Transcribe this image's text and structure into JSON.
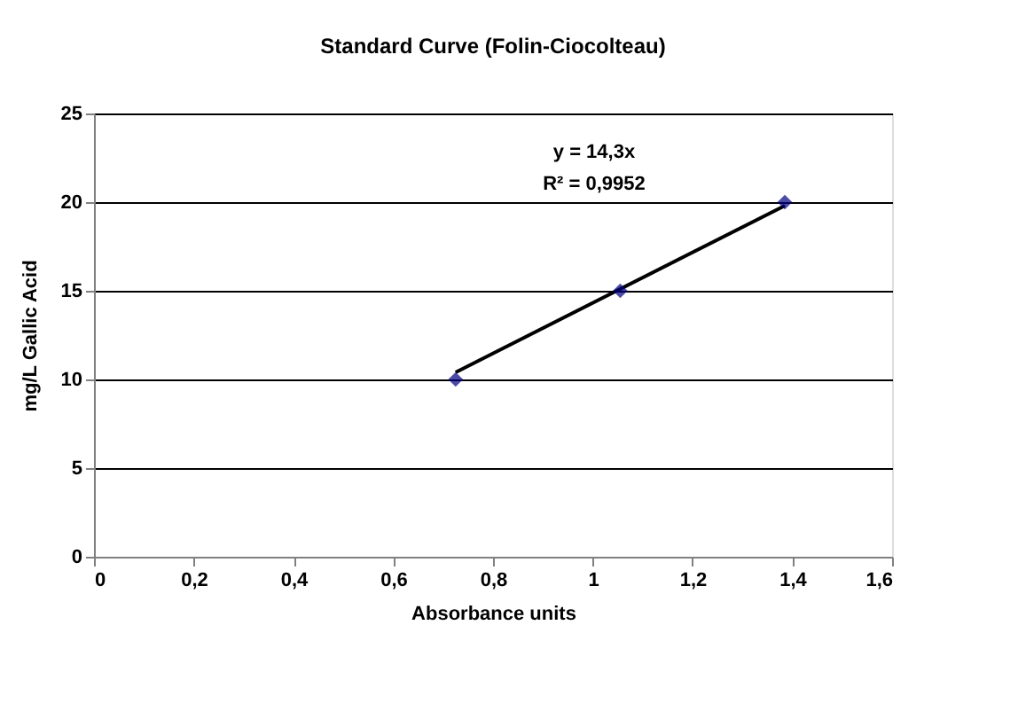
{
  "chart_data": {
    "type": "scatter",
    "title": "Standard Curve (Folin-Ciocolteau)",
    "xlabel": "Absorbance units",
    "ylabel": "mg/L Gallic Acid",
    "x": [
      0.725,
      1.055,
      1.385
    ],
    "series": [
      {
        "color": "#000080",
        "values": [
          10,
          15,
          20
        ],
        "marker": "diamond"
      },
      {
        "type": "line",
        "color": "#000000",
        "x": [
          0.725,
          1.385
        ],
        "values": [
          10.4,
          19.8
        ],
        "marker": "none",
        "line_style": "solid"
      }
    ],
    "annotations": [
      "y = 14,3x",
      "R² = 0,9952"
    ],
    "xlim": [
      0,
      1.6
    ],
    "ylim": [
      0,
      25
    ],
    "xticks": [
      0,
      {
        "value": 0.2,
        "label": "0,2"
      },
      {
        "value": 0.4,
        "label": "0,4"
      },
      {
        "value": 0.6,
        "label": "0,6"
      },
      {
        "value": 0.8,
        "label": "0,8"
      },
      1,
      {
        "value": 1.2,
        "label": "1,2"
      },
      {
        "value": 1.4,
        "label": "1,4"
      },
      {
        "value": 1.6,
        "label": "1,6"
      }
    ],
    "yticks": [
      0,
      5,
      10,
      15,
      20,
      25
    ],
    "grid": "y"
  }
}
